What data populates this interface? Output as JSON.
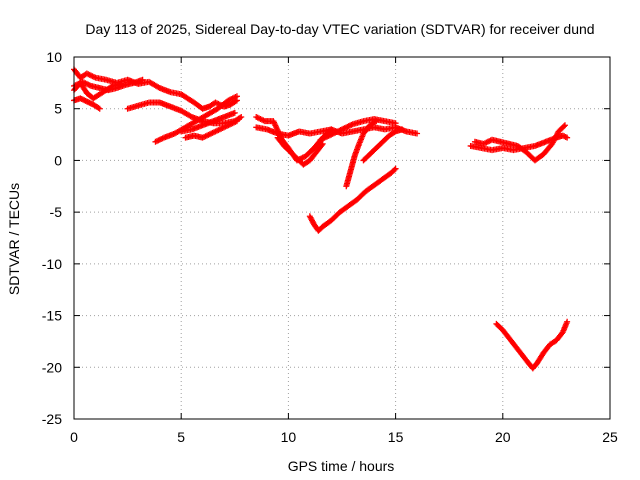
{
  "chart_data": {
    "type": "scatter",
    "title": "Day 113 of 2025, Sidereal Day-to-day VTEC variation (SDTVAR) for receiver dund",
    "xlabel": "GPS time / hours",
    "ylabel": "SDTVAR / TECUs",
    "xlim": [
      0,
      25
    ],
    "ylim": [
      -25,
      10
    ],
    "xticks": [
      0,
      5,
      10,
      15,
      20,
      25
    ],
    "yticks": [
      -25,
      -20,
      -15,
      -10,
      -5,
      0,
      5,
      10
    ],
    "grid": true,
    "legend": "none",
    "marker": "plus",
    "color": "#ff0000",
    "series": [
      {
        "x": [
          0.0,
          0.3,
          0.6,
          1.0,
          1.5,
          2.0,
          2.5,
          3.0,
          3.5,
          4.0,
          4.5,
          5.0,
          5.3,
          5.6,
          6.0,
          6.3,
          6.6,
          7.0,
          7.3,
          7.6
        ],
        "y": [
          8.8,
          8.0,
          8.4,
          8.0,
          7.8,
          7.5,
          7.8,
          7.4,
          7.6,
          7.0,
          6.6,
          6.4,
          6.0,
          5.6,
          5.0,
          5.2,
          5.6,
          5.2,
          5.4,
          5.8
        ]
      },
      {
        "x": [
          0.0,
          0.4,
          0.8,
          1.2,
          1.6,
          2.0,
          2.4,
          2.8,
          3.2
        ],
        "y": [
          7.2,
          7.6,
          7.2,
          7.0,
          6.8,
          7.0,
          7.3,
          7.5,
          7.8
        ]
      },
      {
        "x": [
          0.0,
          0.3,
          0.6,
          0.9,
          1.2,
          1.5,
          1.8,
          2.2
        ],
        "y": [
          6.8,
          7.5,
          6.5,
          6.0,
          6.4,
          6.8,
          7.2,
          7.4
        ]
      },
      {
        "x": [
          0.0,
          0.3,
          0.6,
          0.9,
          1.2
        ],
        "y": [
          5.8,
          6.0,
          5.7,
          5.4,
          5.0
        ]
      },
      {
        "x": [
          2.5,
          3.0,
          3.5,
          4.0,
          4.5,
          5.0,
          5.5,
          6.0,
          6.5,
          7.0,
          7.5,
          7.8
        ],
        "y": [
          5.0,
          5.3,
          5.6,
          5.6,
          5.2,
          4.8,
          4.2,
          3.8,
          3.6,
          3.6,
          3.8,
          4.2
        ]
      },
      {
        "x": [
          3.8,
          4.2,
          4.7,
          5.2,
          5.7,
          6.2,
          6.7,
          7.2,
          7.6
        ],
        "y": [
          1.8,
          2.2,
          2.6,
          3.2,
          3.8,
          4.4,
          5.0,
          5.8,
          6.2
        ]
      },
      {
        "x": [
          5.0,
          5.5,
          6.0,
          6.5,
          7.0,
          7.5
        ],
        "y": [
          2.8,
          3.0,
          3.4,
          3.8,
          4.2,
          4.6
        ]
      },
      {
        "x": [
          5.2,
          5.6,
          6.0,
          6.4,
          6.8,
          7.2,
          7.6
        ],
        "y": [
          2.2,
          2.4,
          2.2,
          2.6,
          3.0,
          3.4,
          3.8
        ]
      },
      {
        "x": [
          8.5,
          9.0,
          9.5,
          10.0,
          10.5,
          11.0,
          11.5,
          12.0,
          12.5,
          13.0,
          13.5,
          14.0,
          14.5,
          15.0,
          15.5,
          16.0
        ],
        "y": [
          3.2,
          3.0,
          2.6,
          2.4,
          2.8,
          2.6,
          2.8,
          3.0,
          2.6,
          2.8,
          3.0,
          3.2,
          3.0,
          3.2,
          2.8,
          2.6
        ]
      },
      {
        "x": [
          8.5,
          8.9,
          9.3,
          9.7,
          10.0,
          10.4,
          10.8,
          11.2,
          11.6,
          12.0
        ],
        "y": [
          4.2,
          3.8,
          3.8,
          2.0,
          1.2,
          0.0,
          0.4,
          1.2,
          2.2,
          3.0
        ]
      },
      {
        "x": [
          9.5,
          9.8,
          10.1,
          10.4,
          10.7,
          11.0,
          11.3,
          11.6
        ],
        "y": [
          2.2,
          1.4,
          0.8,
          0.2,
          -0.4,
          0.0,
          0.8,
          1.6
        ]
      },
      {
        "x": [
          11.5,
          12.0,
          12.5,
          13.0,
          13.5,
          14.0,
          14.5,
          15.0
        ],
        "y": [
          2.0,
          2.5,
          3.0,
          3.5,
          3.8,
          4.0,
          3.8,
          3.6
        ]
      },
      {
        "x": [
          12.7,
          12.9,
          13.1,
          13.3,
          13.5,
          13.8,
          14.1
        ],
        "y": [
          -2.5,
          -1.0,
          0.5,
          1.6,
          2.6,
          3.4,
          3.8
        ]
      },
      {
        "x": [
          13.5,
          13.8,
          14.1,
          14.4,
          14.7,
          15.0,
          15.3
        ],
        "y": [
          0.0,
          0.6,
          1.2,
          1.8,
          2.4,
          2.8,
          3.0
        ]
      },
      {
        "x": [
          11.0,
          11.2,
          11.4,
          11.6,
          12.0,
          12.4,
          12.8,
          13.2,
          13.6,
          14.0,
          14.4,
          14.8,
          15.0
        ],
        "y": [
          -5.4,
          -6.2,
          -6.8,
          -6.4,
          -5.8,
          -5.0,
          -4.4,
          -3.8,
          -3.0,
          -2.4,
          -1.8,
          -1.2,
          -0.8
        ]
      },
      {
        "x": [
          18.5,
          19.0,
          19.5,
          20.0,
          20.5,
          21.0,
          21.5,
          22.0,
          22.5,
          22.8,
          23.0
        ],
        "y": [
          1.4,
          1.2,
          1.0,
          1.2,
          1.0,
          1.2,
          1.4,
          1.8,
          2.2,
          2.4,
          2.2
        ]
      },
      {
        "x": [
          18.7,
          19.1,
          19.5,
          19.9,
          20.3,
          20.7,
          21.1,
          21.5,
          21.9,
          22.3,
          22.6,
          22.9
        ],
        "y": [
          1.8,
          1.6,
          2.0,
          1.8,
          1.6,
          1.4,
          0.8,
          0.0,
          0.6,
          1.6,
          2.8,
          3.4
        ]
      },
      {
        "x": [
          19.7,
          20.0,
          20.3,
          20.6,
          20.9,
          21.2,
          21.4,
          21.6,
          21.9,
          22.2,
          22.5,
          22.8,
          23.0
        ],
        "y": [
          -15.8,
          -16.4,
          -17.2,
          -18.0,
          -18.8,
          -19.6,
          -20.1,
          -19.6,
          -18.6,
          -17.8,
          -17.4,
          -16.6,
          -15.6
        ]
      }
    ]
  }
}
